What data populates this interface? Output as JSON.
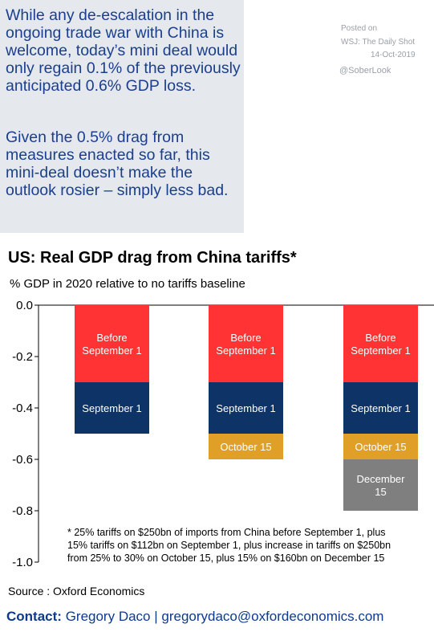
{
  "comment": {
    "para1": "While any de-escalation in the ongoing trade war with China is welcome, today’s mini deal would only regain 0.1% of the previously anticipated 0.6% GDP loss.",
    "para2": "Given the 0.5% drag from measures enacted so far, this mini-deal doesn’t make the outlook rosier – simply less bad."
  },
  "posted": {
    "label": "Posted on",
    "source": "WSJ: The Daily Shot",
    "date": "14-Oct-2019",
    "handle": "@SoberLook"
  },
  "footer": {
    "source": "Source : Oxford Economics",
    "contact_label": "Contact:",
    "contact_text": "Gregory Daco | gregorydaco@oxfordeconomics.com"
  },
  "colors": {
    "before_sep1": "#ff3333",
    "sep1": "#0e3366",
    "oct15": "#e0a028",
    "dec15": "#7f7f7f",
    "comment_text": "#1b3f8f",
    "comment_bg": "#e5e8ed"
  },
  "chart_data": {
    "type": "bar",
    "stacked": true,
    "title": "US: Real GDP drag from China tariffs*",
    "subtitle": "% GDP in 2020 relative to no tariffs baseline",
    "ylim": [
      -1.0,
      0.0
    ],
    "yticks": [
      "0.0",
      "-0.2",
      "-0.4",
      "-0.6",
      "-0.8",
      "-1.0"
    ],
    "ytick_values": [
      0.0,
      -0.2,
      -0.4,
      -0.6,
      -0.8,
      -1.0
    ],
    "categories": [
      "",
      "",
      ""
    ],
    "series": [
      {
        "name": "Before September 1",
        "label_lines": [
          "Before",
          "September 1"
        ],
        "color_key": "before_sep1",
        "values": [
          -0.3,
          -0.3,
          -0.3
        ]
      },
      {
        "name": "September 1",
        "label_lines": [
          "September 1"
        ],
        "color_key": "sep1",
        "values": [
          -0.2,
          -0.2,
          -0.2
        ]
      },
      {
        "name": "October 15",
        "label_lines": [
          "October 15"
        ],
        "color_key": "oct15",
        "values": [
          0.0,
          -0.1,
          -0.1
        ]
      },
      {
        "name": "December 15",
        "label_lines": [
          "December",
          "15"
        ],
        "color_key": "dec15",
        "values": [
          0.0,
          0.0,
          -0.2
        ]
      }
    ],
    "footnote": [
      "* 25% tariffs on $250bn of imports from China before September 1, plus",
      "15% tariffs on $112bn on September 1, plus increase in tariffs on $250bn",
      "from 25% to 30% on October 15, plus 15% on $160bn on December 15"
    ]
  }
}
